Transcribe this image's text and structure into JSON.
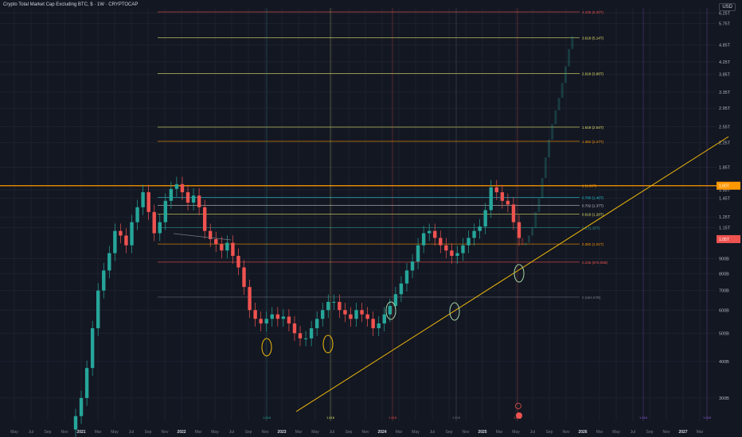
{
  "header": {
    "title": "Crypto Total Market Cap Excluding BTC, $ · 1W · CRYPTOCAP",
    "currency": "USD"
  },
  "colors": {
    "background": "#131722",
    "up": "#26a69a",
    "down": "#ef5350",
    "trendline": "#f0b90b",
    "grid": "#1e222d"
  },
  "chart_data": {
    "type": "candlestick",
    "title": "Crypto Total Market Cap Excluding BTC, $ · 1W · CRYPTOCAP",
    "y_scale": "log",
    "y_tick_labels": [
      "6.25T",
      "5.75T",
      "4.85T",
      "4.25T",
      "3.85T",
      "3.35T",
      "2.95T",
      "2.55T",
      "2.25T",
      "1.85T",
      "1.55T",
      "1.45T",
      "1.25T",
      "1.15T",
      "900B",
      "800B",
      "700B",
      "600B",
      "500B",
      "400B",
      "300B"
    ],
    "x_tick_labels": [
      "May",
      "Jul",
      "Sep",
      "Nov",
      "2021",
      "Mar",
      "May",
      "Jul",
      "Sep",
      "Nov",
      "2022",
      "Mar",
      "May",
      "Jul",
      "Sep",
      "Nov",
      "2023",
      "Mar",
      "May",
      "Jul",
      "Sep",
      "Nov",
      "2024",
      "Mar",
      "May",
      "Jul",
      "Sep",
      "Nov",
      "2025",
      "Mar",
      "May",
      "Jul",
      "Sep",
      "Nov",
      "2026",
      "Mar",
      "May",
      "Jul",
      "Sep",
      "Nov",
      "2027",
      "Mar"
    ],
    "fib_levels": [
      {
        "label": "4.236 (6.30T)",
        "color": "#ef5350"
      },
      {
        "label": "3.618 (5.14T)",
        "color": "#e3e36b"
      },
      {
        "label": "2.618 (3.88T)",
        "color": "#e3e36b"
      },
      {
        "label": "1.618 (2.54T)",
        "color": "#e3e36b"
      },
      {
        "label": "1.382 (2.27T)",
        "color": "#ff9800"
      },
      {
        "label": "1 (1.60T)",
        "color": "#ff9800"
      },
      {
        "label": "0.786 (1.46T)",
        "color": "#26c6da"
      },
      {
        "label": "0.702 (1.37T)",
        "color": "#c6c6c6"
      },
      {
        "label": "0.618 (1.28T)",
        "color": "#e3e36b"
      },
      {
        "label": "0.5 (1.15T)",
        "color": "#26a69a"
      },
      {
        "label": "0.382 (1.01T)",
        "color": "#ff9800"
      },
      {
        "label": "0.236 (876.05B)",
        "color": "#ef5350"
      },
      {
        "label": "0 (664.67B)",
        "color": "#787b86"
      }
    ],
    "price_labels": [
      {
        "label": "1.60T",
        "color": "#ff9800"
      },
      {
        "label": "1.05T",
        "color": "#ef5350"
      }
    ],
    "vertical_labels": [
      {
        "label": "1.618",
        "color": "#26a69a"
      },
      {
        "label": "1.618",
        "color": "#e3e36b"
      },
      {
        "label": "1.618",
        "color": "#ef5350"
      },
      {
        "label": "1.618",
        "color": "#787b86"
      },
      {
        "label": "1.618",
        "color": "#ef5350"
      },
      {
        "label": "1.618",
        "color": "#8e5bd6"
      },
      {
        "label": "1.618",
        "color": "#8e5bd6"
      }
    ],
    "series": [
      {
        "name": "",
        "weekly_closes_B": [
          260,
          300,
          380,
          520,
          700,
          820,
          940,
          1120,
          1080,
          1000,
          1200,
          1350,
          1520,
          1300,
          1100,
          1200,
          1420,
          1560,
          1620,
          1520,
          1400,
          1480,
          1350,
          1120,
          1050,
          1010,
          960,
          1020,
          920,
          840,
          720,
          600,
          560,
          540,
          560,
          580,
          560,
          570,
          540,
          500,
          480,
          480,
          520,
          560,
          600,
          640,
          640,
          600,
          580,
          560,
          600,
          580,
          560,
          520,
          540,
          580,
          620,
          680,
          740,
          820,
          880,
          1000,
          1100,
          1120,
          1060,
          1000,
          960,
          920,
          940,
          1000,
          1060,
          1120,
          1160,
          1320,
          1580,
          1520,
          1420,
          1380,
          1200,
          1060
        ]
      },
      {
        "name": "",
        "projected_closes_B": [
          1000,
          1020,
          1080,
          1150,
          1300,
          1450,
          1700,
          2000,
          2300,
          2600,
          2900,
          3200,
          3600,
          4100,
          4700,
          5200
        ]
      }
    ],
    "annotations": [
      "trendline support",
      "ellipse markers"
    ]
  }
}
